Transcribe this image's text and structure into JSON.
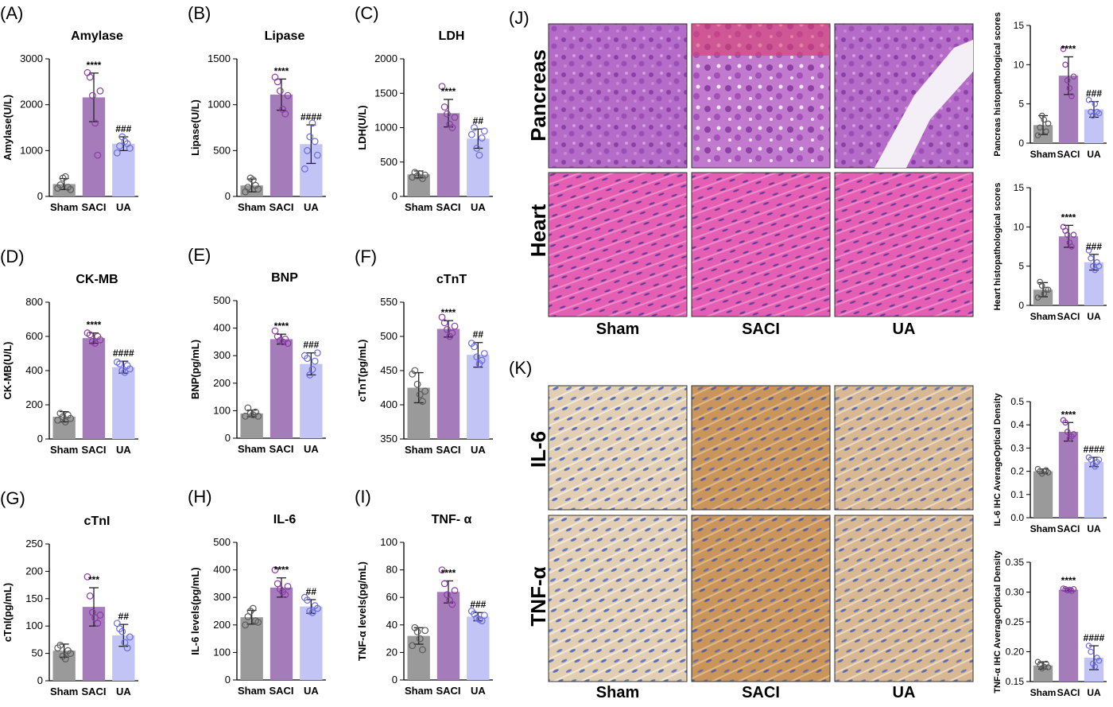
{
  "groups": [
    "Sham",
    "SACI",
    "UA"
  ],
  "colors": {
    "Sham": "#9a9a9a",
    "SACI": "#a57cb9",
    "UA": "#c2c4f5",
    "dot_Sham": "#5a5a5a",
    "dot_SACI": "#8a3aa8",
    "dot_UA": "#6a6ae0"
  },
  "panels": {
    "J": {
      "label": "(J)",
      "rows": [
        "Pancreas",
        "Heart"
      ],
      "cols": [
        "Sham",
        "SACI",
        "UA"
      ]
    },
    "K": {
      "label": "(K)",
      "rows": [
        "IL-6",
        "TNF-α"
      ],
      "cols": [
        "Sham",
        "SACI",
        "UA"
      ]
    }
  },
  "chart_data": [
    {
      "id": "A",
      "panel": "(A)",
      "type": "bar",
      "title": "Amylase",
      "ylabel": "Amylase(U/L)",
      "categories": [
        "Sham",
        "SACI",
        "UA"
      ],
      "values": [
        270,
        2160,
        1150
      ],
      "sd": [
        120,
        530,
        150
      ],
      "points": [
        [
          180,
          250,
          400,
          430,
          200,
          150
        ],
        [
          2700,
          2600,
          2200,
          1600,
          900,
          2300
        ],
        [
          950,
          1100,
          1300,
          1200,
          1150,
          1050
        ]
      ],
      "ylim": [
        0,
        3000
      ],
      "yticks": [
        0,
        1000,
        2000,
        3000
      ],
      "sig": [
        "",
        "****",
        "###"
      ]
    },
    {
      "id": "B",
      "panel": "(B)",
      "type": "bar",
      "title": "Lipase",
      "ylabel": "Lipase(U/L)",
      "categories": [
        "Sham",
        "SACI",
        "UA"
      ],
      "values": [
        120,
        1110,
        570
      ],
      "sd": [
        70,
        170,
        210
      ],
      "points": [
        [
          50,
          100,
          200,
          180,
          120,
          80
        ],
        [
          1300,
          1250,
          1150,
          950,
          900,
          1100
        ],
        [
          300,
          500,
          650,
          800,
          600,
          450
        ]
      ],
      "ylim": [
        0,
        1500
      ],
      "yticks": [
        0,
        500,
        1000,
        1500
      ],
      "sig": [
        "",
        "****",
        "####"
      ]
    },
    {
      "id": "C",
      "panel": "(C)",
      "type": "bar",
      "title": "LDH",
      "ylabel": "LDH(U/L)",
      "categories": [
        "Sham",
        "SACI",
        "UA"
      ],
      "values": [
        320,
        1210,
        840
      ],
      "sd": [
        50,
        200,
        140
      ],
      "points": [
        [
          280,
          350,
          300,
          330,
          260,
          310
        ],
        [
          1600,
          1300,
          1200,
          1050,
          1000,
          1150
        ],
        [
          900,
          1000,
          700,
          600,
          850,
          950
        ]
      ],
      "ylim": [
        0,
        2000
      ],
      "yticks": [
        0,
        500,
        1000,
        1500,
        2000
      ],
      "sig": [
        "",
        "****",
        "##"
      ]
    },
    {
      "id": "D",
      "panel": "(D)",
      "type": "bar",
      "title": "CK-MB",
      "ylabel": "CK-MB(U/L)",
      "categories": [
        "Sham",
        "SACI",
        "UA"
      ],
      "values": [
        130,
        590,
        420
      ],
      "sd": [
        30,
        30,
        35
      ],
      "points": [
        [
          110,
          150,
          130,
          100,
          140,
          120
        ],
        [
          620,
          610,
          570,
          560,
          600,
          580
        ],
        [
          450,
          440,
          400,
          390,
          430,
          410
        ]
      ],
      "ylim": [
        0,
        800
      ],
      "yticks": [
        0,
        200,
        400,
        600,
        800
      ],
      "sig": [
        "",
        "****",
        "####"
      ]
    },
    {
      "id": "E",
      "panel": "(E)",
      "type": "bar",
      "title": "BNP",
      "ylabel": "BNP(pg/mL)",
      "categories": [
        "Sham",
        "SACI",
        "UA"
      ],
      "values": [
        90,
        360,
        270
      ],
      "sd": [
        12,
        18,
        40
      ],
      "points": [
        [
          80,
          110,
          90,
          85,
          95,
          80
        ],
        [
          390,
          370,
          355,
          350,
          360,
          345
        ],
        [
          300,
          290,
          230,
          250,
          280,
          310
        ]
      ],
      "ylim": [
        0,
        500
      ],
      "yticks": [
        0,
        100,
        200,
        300,
        400,
        500
      ],
      "sig": [
        "",
        "****",
        "###"
      ]
    },
    {
      "id": "F",
      "panel": "(F)",
      "type": "bar",
      "title": "cTnT",
      "ylabel": "cTnT(pg/mL)",
      "categories": [
        "Sham",
        "SACI",
        "UA"
      ],
      "values": [
        425,
        511,
        473
      ],
      "sd": [
        22,
        12,
        18
      ],
      "points": [
        [
          445,
          450,
          430,
          415,
          405,
          420
        ],
        [
          528,
          520,
          510,
          500,
          505,
          515
        ],
        [
          490,
          485,
          470,
          460,
          465,
          475
        ]
      ],
      "ylim": [
        350,
        550
      ],
      "yticks": [
        350,
        400,
        450,
        500,
        550
      ],
      "sig": [
        "",
        "****",
        "##"
      ]
    },
    {
      "id": "G",
      "panel": "(G)",
      "type": "bar",
      "title": "cTnI",
      "ylabel": "cTnI(pg/mL)",
      "categories": [
        "Sham",
        "SACI",
        "UA"
      ],
      "values": [
        55,
        135,
        83
      ],
      "sd": [
        12,
        35,
        20
      ],
      "points": [
        [
          60,
          65,
          45,
          40,
          55,
          50
        ],
        [
          190,
          155,
          125,
          115,
          105,
          120
        ],
        [
          105,
          95,
          90,
          70,
          60,
          80
        ]
      ],
      "ylim": [
        0,
        250
      ],
      "yticks": [
        0,
        50,
        100,
        150,
        200,
        250
      ],
      "sig": [
        "",
        "***",
        "##"
      ]
    },
    {
      "id": "H",
      "panel": "(H)",
      "type": "bar",
      "title": "IL-6",
      "ylabel": "IL-6 levels(pg/mL)",
      "categories": [
        "Sham",
        "SACI",
        "UA"
      ],
      "values": [
        228,
        336,
        267
      ],
      "sd": [
        25,
        35,
        25
      ],
      "points": [
        [
          200,
          230,
          250,
          260,
          215,
          210
        ],
        [
          400,
          350,
          330,
          320,
          310,
          340
        ],
        [
          300,
          290,
          250,
          245,
          270,
          260
        ]
      ],
      "ylim": [
        0,
        500
      ],
      "yticks": [
        0,
        100,
        200,
        300,
        400,
        500
      ],
      "sig": [
        "",
        "****",
        "##"
      ]
    },
    {
      "id": "I",
      "panel": "(I)",
      "type": "bar",
      "title": "TNF- α",
      "ylabel": "TNF-α levels(pg/mL)",
      "categories": [
        "Sham",
        "SACI",
        "UA"
      ],
      "values": [
        32,
        64,
        46
      ],
      "sd": [
        6,
        8,
        3
      ],
      "points": [
        [
          25,
          38,
          35,
          30,
          22,
          36
        ],
        [
          80,
          70,
          62,
          58,
          55,
          65
        ],
        [
          50,
          48,
          45,
          44,
          43,
          47
        ]
      ],
      "ylim": [
        0,
        100
      ],
      "yticks": [
        0,
        20,
        40,
        60,
        80,
        100
      ],
      "sig": [
        "",
        "****",
        "###"
      ]
    },
    {
      "id": "J1",
      "type": "bar",
      "title": "",
      "ylabel": "Pancreas histopathological scores",
      "categories": [
        "Sham",
        "SACI",
        "UA"
      ],
      "values": [
        2.3,
        8.6,
        4.3
      ],
      "sd": [
        1.2,
        2.4,
        1.0
      ],
      "points": [
        [
          1,
          2,
          3.5,
          3,
          1.5,
          2.5
        ],
        [
          12,
          10,
          8,
          7,
          6,
          8.5
        ],
        [
          5.5,
          4,
          3.5,
          5,
          4,
          3.8
        ]
      ],
      "ylim": [
        0,
        15
      ],
      "yticks": [
        0,
        5,
        10,
        15
      ],
      "sig": [
        "",
        "****",
        "###"
      ]
    },
    {
      "id": "J2",
      "type": "bar",
      "title": "",
      "ylabel": "Heart histopathological scores",
      "categories": [
        "Sham",
        "SACI",
        "UA"
      ],
      "values": [
        2.0,
        8.8,
        5.5
      ],
      "sd": [
        0.9,
        1.4,
        1.0
      ],
      "points": [
        [
          1,
          3,
          2.5,
          1.5,
          2,
          2
        ],
        [
          10,
          9.5,
          9,
          8,
          7.5,
          9
        ],
        [
          7,
          6,
          5,
          4.5,
          5.5,
          5
        ]
      ],
      "ylim": [
        0,
        15
      ],
      "yticks": [
        0,
        5,
        10,
        15
      ],
      "sig": [
        "",
        "****",
        "###"
      ]
    },
    {
      "id": "K1",
      "type": "bar",
      "title": "",
      "ylabel": "IL-6 IHC AverageOptical Density",
      "categories": [
        "Sham",
        "SACI",
        "UA"
      ],
      "values": [
        0.2,
        0.37,
        0.24
      ],
      "sd": [
        0.01,
        0.04,
        0.02
      ],
      "points": [
        [
          0.21,
          0.2,
          0.19,
          0.2,
          0.205,
          0.195
        ],
        [
          0.42,
          0.41,
          0.37,
          0.34,
          0.35,
          0.36
        ],
        [
          0.26,
          0.25,
          0.23,
          0.22,
          0.24,
          0.25
        ]
      ],
      "ylim": [
        0,
        0.5
      ],
      "yticks": [
        0.0,
        0.1,
        0.2,
        0.3,
        0.4,
        0.5
      ],
      "sig": [
        "",
        "****",
        "####"
      ]
    },
    {
      "id": "K2",
      "type": "bar",
      "title": "",
      "ylabel": "TNF-α IHC AverageOptical Density",
      "categories": [
        "Sham",
        "SACI",
        "UA"
      ],
      "values": [
        0.177,
        0.304,
        0.19
      ],
      "sd": [
        0.006,
        0.002,
        0.02
      ],
      "points": [
        [
          0.183,
          0.178,
          0.172,
          0.175,
          0.18,
          0.174
        ],
        [
          0.306,
          0.305,
          0.303,
          0.304,
          0.302,
          0.305
        ],
        [
          0.21,
          0.2,
          0.18,
          0.175,
          0.19,
          0.185
        ]
      ],
      "ylim": [
        0.15,
        0.35
      ],
      "yticks": [
        0.15,
        0.2,
        0.25,
        0.3,
        0.35
      ],
      "sig": [
        "",
        "****",
        "####"
      ]
    }
  ]
}
